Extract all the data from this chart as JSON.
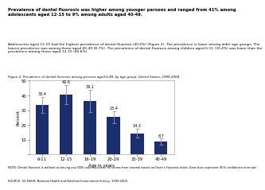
{
  "title_main": "Prevalence of dental fluorosis was higher among younger persons and ranged from 41% among adolescents aged 12-15 to 9% among adults aged 40-49.",
  "body_text": "Adolescents aged 12-15 had the highest prevalence of dental fluorosis (40.6%) (Figure 2). The prevalence is lower among older age groups. The lowest prevalence was among those aged 40-49 (8.7%). The prevalence of dental fluorosis among children aged 6-11 (33.4%) was lower than the prevalence among those aged 12-15 (40.6%).",
  "fig_caption": "Figure 2. Prevalence of dental fluorosis among persons aged 6-49, by age group: United States, 1999-2004",
  "categories": [
    "6-11",
    "12-15",
    "16-19",
    "20-29",
    "30-39",
    "40-49"
  ],
  "values": [
    33.4,
    40.6,
    36.1,
    25.4,
    14.3,
    8.7
  ],
  "error_lower": [
    5.5,
    6.5,
    7.5,
    4.0,
    3.0,
    2.0
  ],
  "error_upper": [
    5.5,
    6.5,
    7.5,
    4.0,
    3.0,
    2.0
  ],
  "bar_color": "#1b2f6e",
  "error_color": "#999999",
  "xlabel": "Age in years",
  "ylabel": "Percent",
  "ylim": [
    0,
    50
  ],
  "yticks": [
    0,
    10,
    20,
    30,
    40,
    50
  ],
  "background_color": "#ffffff",
  "note1": "NOTE: Dental fluorosis is defined as having any DDE code indicative of lesions from enamel based on Dean's Fluorosis Index. Error bars represent 95% confidence intervals.",
  "note2": "SOURCE: US DHHS, National Health and Nutrition Examination Survey, 1999-2004."
}
